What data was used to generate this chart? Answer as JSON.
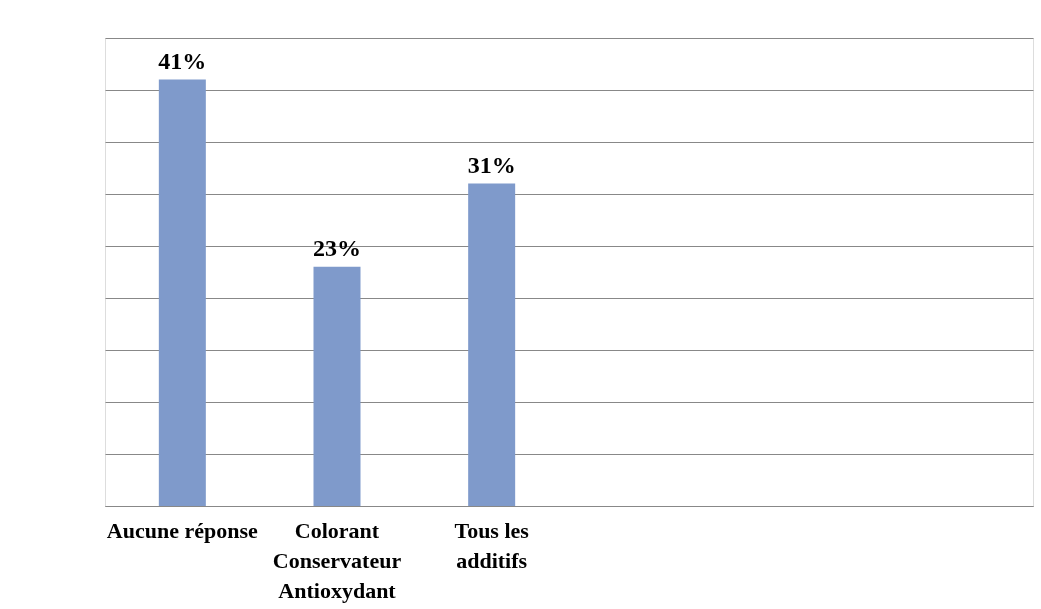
{
  "chart_data": {
    "type": "bar",
    "categories": [
      "Aucune réponse",
      "Colorant\nConservateur\nAntioxydant",
      "Tous les\nadditifs",
      null,
      null,
      null
    ],
    "values": [
      41,
      23,
      31,
      null,
      null,
      null
    ],
    "value_labels": [
      "41%",
      "23%",
      "31%",
      null,
      null,
      null
    ],
    "color": "#7f9acb",
    "ylim": [
      0,
      45
    ],
    "yticks": [
      {
        "value": 0,
        "label": null
      },
      {
        "value": 5,
        "label": null
      },
      {
        "value": 10,
        "label": null
      },
      {
        "value": 15,
        "label": null
      },
      {
        "value": 20,
        "label": null
      },
      {
        "value": 25,
        "label": null
      },
      {
        "value": 30,
        "label": null
      },
      {
        "value": 35,
        "label": null
      },
      {
        "value": 40,
        "label": null
      },
      {
        "value": 45,
        "label": null
      }
    ],
    "grid": "y",
    "tick_labels": "x"
  }
}
